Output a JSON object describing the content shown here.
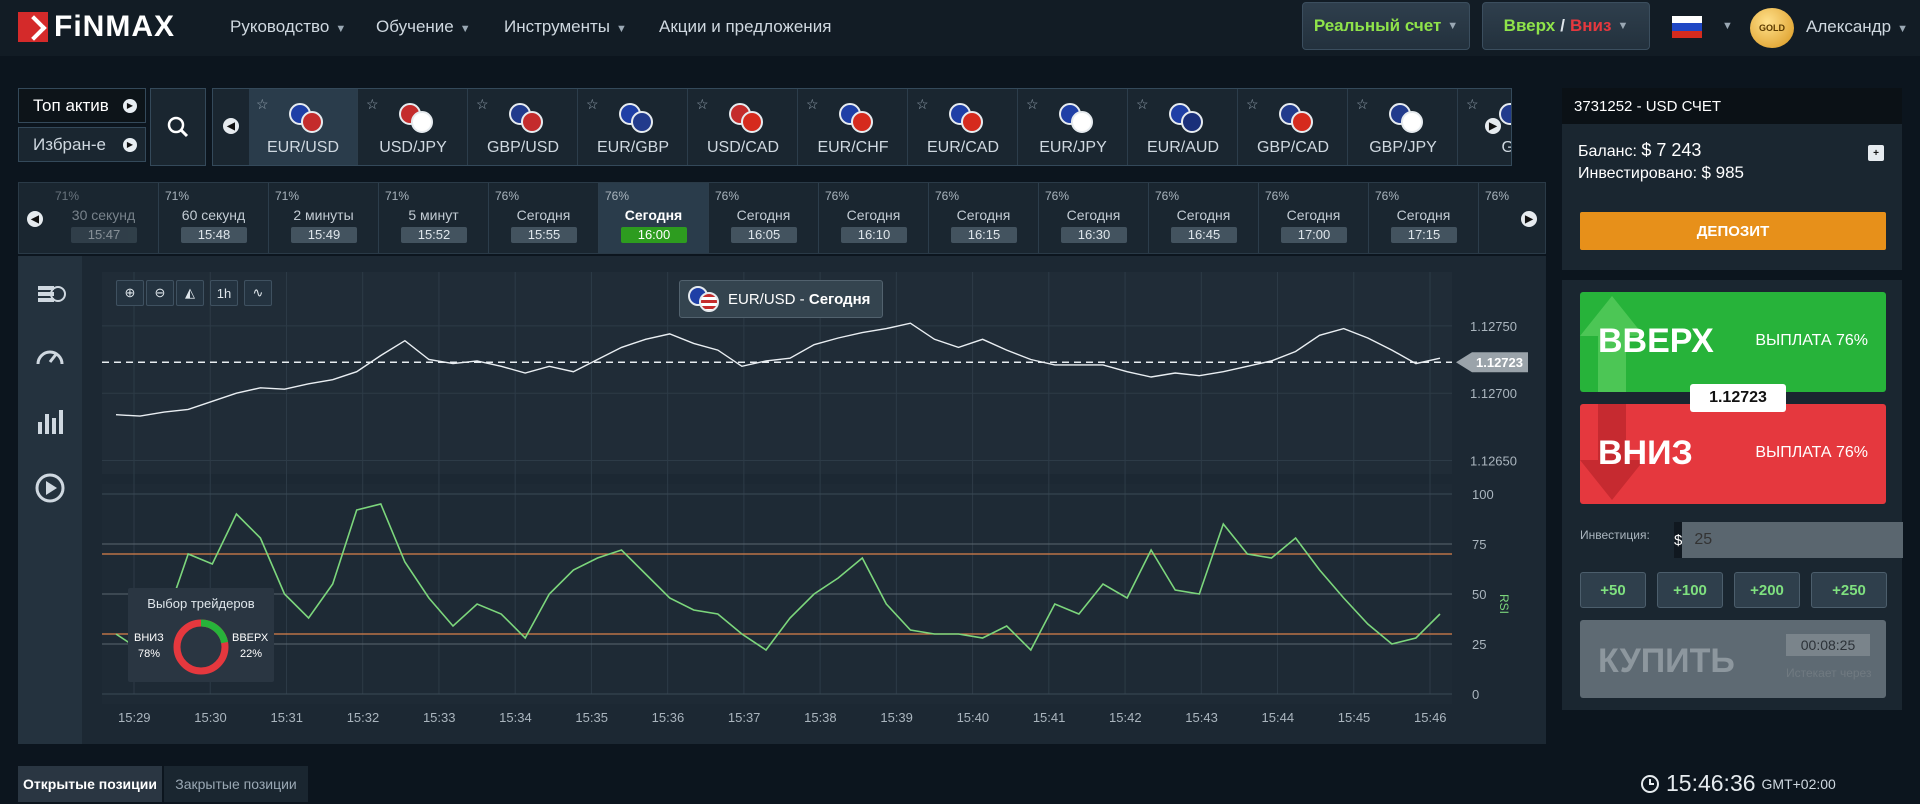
{
  "brand": {
    "logo_text": "FiNMAX"
  },
  "nav": {
    "items": [
      "Руководство",
      "Обучение",
      "Инструменты",
      "Акции и предложения"
    ]
  },
  "header": {
    "account_type": "Реальный счет",
    "trade_type_up": "Вверх",
    "trade_type_sep": "/",
    "trade_type_down": "Вниз",
    "status_badge": "GOLD",
    "username": "Александр"
  },
  "asset_tabs": {
    "top": "Топ актив",
    "favorites": "Избран-е"
  },
  "assets": [
    "EUR/USD",
    "USD/JPY",
    "GBP/USD",
    "EUR/GBP",
    "USD/CAD",
    "EUR/CHF",
    "EUR/CAD",
    "EUR/JPY",
    "EUR/AUD",
    "GBP/CAD",
    "GBP/JPY",
    "GB"
  ],
  "expiries": [
    {
      "pct": "71%",
      "label": "30 секунд",
      "time": "15:47"
    },
    {
      "pct": "71%",
      "label": "60 секунд",
      "time": "15:48"
    },
    {
      "pct": "71%",
      "label": "2 минуты",
      "time": "15:49"
    },
    {
      "pct": "71%",
      "label": "5 минут",
      "time": "15:52"
    },
    {
      "pct": "76%",
      "label": "Сегодня",
      "time": "15:55"
    },
    {
      "pct": "76%",
      "label": "Сегодня",
      "time": "16:00"
    },
    {
      "pct": "76%",
      "label": "Сегодня",
      "time": "16:05"
    },
    {
      "pct": "76%",
      "label": "Сегодня",
      "time": "16:10"
    },
    {
      "pct": "76%",
      "label": "Сегодня",
      "time": "16:15"
    },
    {
      "pct": "76%",
      "label": "Сегодня",
      "time": "16:30"
    },
    {
      "pct": "76%",
      "label": "Сегодня",
      "time": "16:45"
    },
    {
      "pct": "76%",
      "label": "Сегодня",
      "time": "17:00"
    },
    {
      "pct": "76%",
      "label": "Сегодня",
      "time": "17:15"
    },
    {
      "pct": "76%",
      "label": "",
      "time": ""
    }
  ],
  "chart": {
    "title_asset": "EUR/USD",
    "title_sep": " - ",
    "title_period": "Сегодня",
    "timeframe": "1h",
    "current_price": "1.12723",
    "rsi_label": "RSI"
  },
  "chart_data": {
    "type": "line",
    "price_ticks": [
      "1.12750",
      "1.12700",
      "1.12650"
    ],
    "ylim": [
      1.1264,
      1.1279
    ],
    "rsi_ticks": [
      "100",
      "75",
      "50",
      "25",
      "0"
    ],
    "x_ticks": [
      "15:29",
      "15:30",
      "15:31",
      "15:32",
      "15:33",
      "15:34",
      "15:35",
      "15:36",
      "15:37",
      "15:38",
      "15:39",
      "15:40",
      "15:41",
      "15:42",
      "15:43",
      "15:44",
      "15:45",
      "15:46"
    ],
    "price": [
      1.12684,
      1.12683,
      1.12686,
      1.12688,
      1.12694,
      1.127,
      1.12704,
      1.12703,
      1.12707,
      1.1271,
      1.12716,
      1.12728,
      1.12739,
      1.12725,
      1.12722,
      1.12724,
      1.1272,
      1.12715,
      1.1272,
      1.12716,
      1.12725,
      1.12734,
      1.1274,
      1.12744,
      1.12737,
      1.12732,
      1.1272,
      1.12724,
      1.12726,
      1.12736,
      1.12741,
      1.12745,
      1.12748,
      1.12752,
      1.1274,
      1.12734,
      1.1274,
      1.12732,
      1.12725,
      1.12721,
      1.12721,
      1.12721,
      1.12716,
      1.12712,
      1.12715,
      1.12713,
      1.12716,
      1.1272,
      1.12724,
      1.12731,
      1.12743,
      1.12748,
      1.12741,
      1.12732,
      1.12722,
      1.12726
    ],
    "rsi": [
      30,
      22,
      35,
      70,
      65,
      90,
      78,
      50,
      38,
      55,
      92,
      95,
      66,
      48,
      34,
      45,
      40,
      28,
      50,
      62,
      68,
      72,
      60,
      48,
      42,
      40,
      30,
      22,
      38,
      50,
      58,
      68,
      45,
      32,
      30,
      30,
      28,
      34,
      22,
      45,
      40,
      55,
      48,
      72,
      52,
      50,
      85,
      70,
      68,
      78,
      62,
      48,
      35,
      25,
      28,
      40
    ],
    "levels": [
      70,
      30
    ]
  },
  "traders_choice": {
    "title": "Выбор трейдеров",
    "down_label": "ВНИЗ",
    "down_pct": "78%",
    "up_label": "ВВЕРХ",
    "up_pct": "22%",
    "down_value": 78,
    "up_value": 22
  },
  "bottom_tabs": {
    "open": "Открытые позиции",
    "closed": "Закрытые позиции"
  },
  "clock": {
    "time": "15:46:36",
    "tz": "GMT+02:00"
  },
  "account": {
    "header": "3731252 - USD СЧЕТ",
    "balance_label": "Баланс:",
    "balance": "$ 7 243",
    "invested_label": "Инвестировано:",
    "invested": "$ 985",
    "deposit": "ДЕПОЗИТ"
  },
  "trade": {
    "up_label": "ВВЕРХ",
    "up_payout": "ВЫПЛАТА 76%",
    "down_label": "ВНИЗ",
    "down_payout": "ВЫПЛАТА 76%",
    "price": "1.12723",
    "investment_label": "Инвестиция:",
    "currency": "$",
    "investment_value": "25",
    "quick": [
      "+50",
      "+100",
      "+200",
      "+250"
    ],
    "buy": "КУПИТЬ",
    "timer": "00:08:25",
    "expires_label": "Истекает через"
  },
  "colors": {
    "up": "#27b33a",
    "down": "#e5383e",
    "accent": "#e7901a",
    "rsi": "#7cd67c"
  }
}
